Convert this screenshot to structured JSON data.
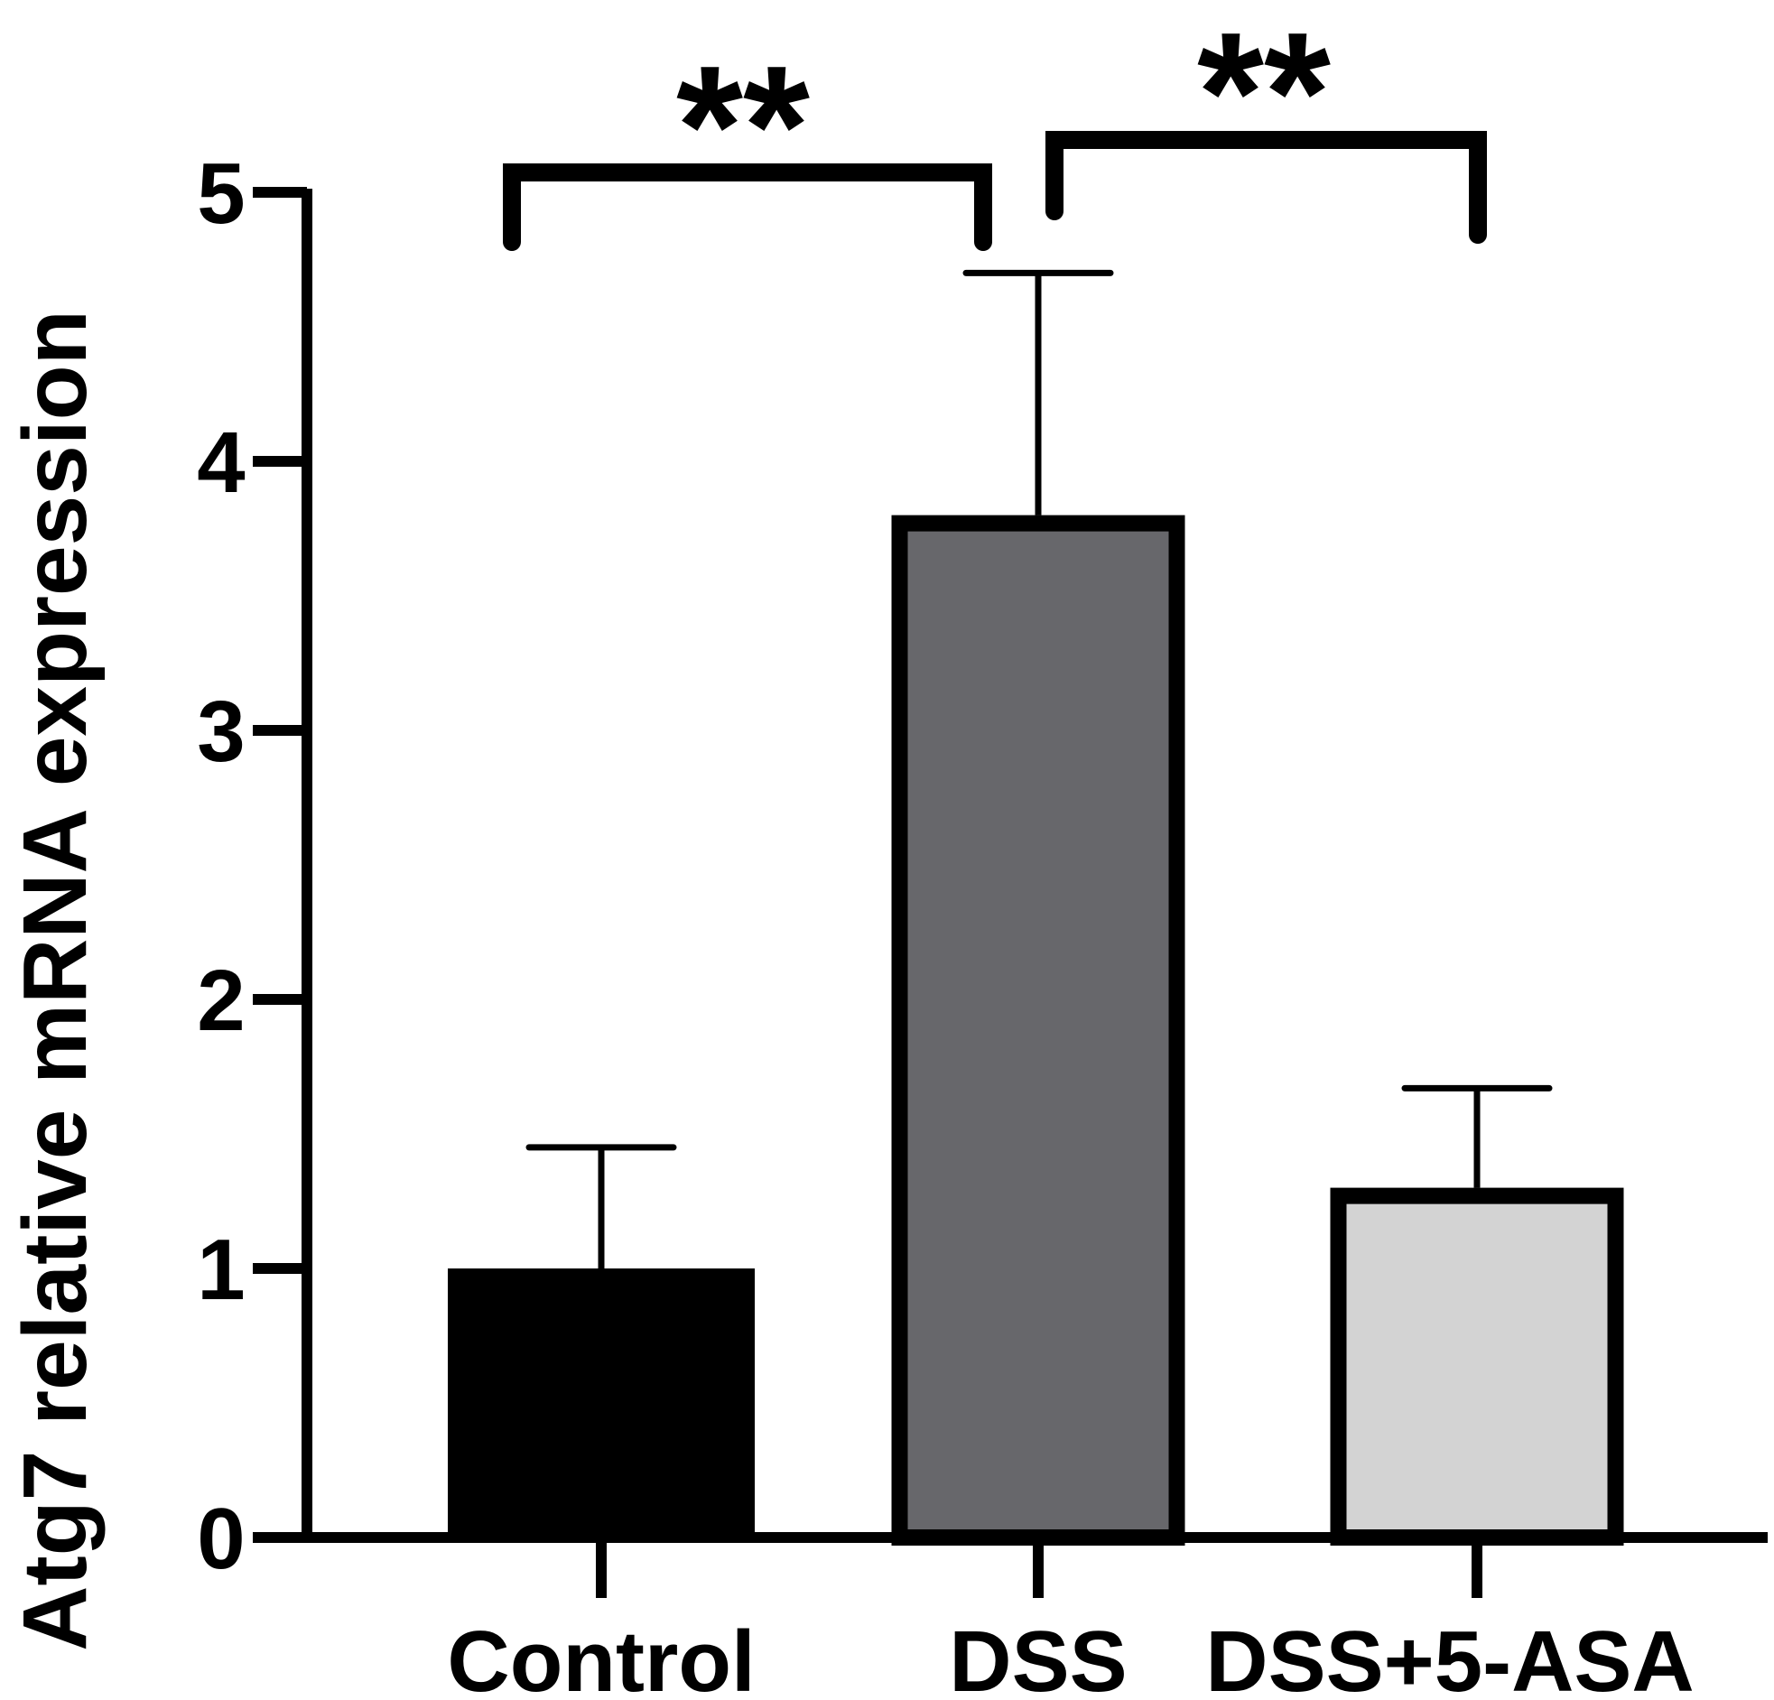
{
  "chart_data": {
    "type": "bar",
    "title": "",
    "xlabel": "",
    "ylabel": "Atg7 relative mRNA expression",
    "categories": [
      "Control",
      "DSS",
      "DSS+5-ASA"
    ],
    "values": [
      1.0,
      3.8,
      1.3
    ],
    "error_upper": [
      1.45,
      4.7,
      1.67
    ],
    "ylim": [
      0,
      5
    ],
    "yticks": [
      "0",
      "1",
      "2",
      "3",
      "4",
      "5"
    ],
    "bar_colors": [
      "#000000",
      "#67676b",
      "#d3d3d3"
    ],
    "grid": false,
    "legend": "none",
    "significance": [
      {
        "from": "Control",
        "to": "DSS",
        "label": "**"
      },
      {
        "from": "DSS",
        "to": "DSS+5-ASA",
        "label": "**"
      }
    ]
  }
}
